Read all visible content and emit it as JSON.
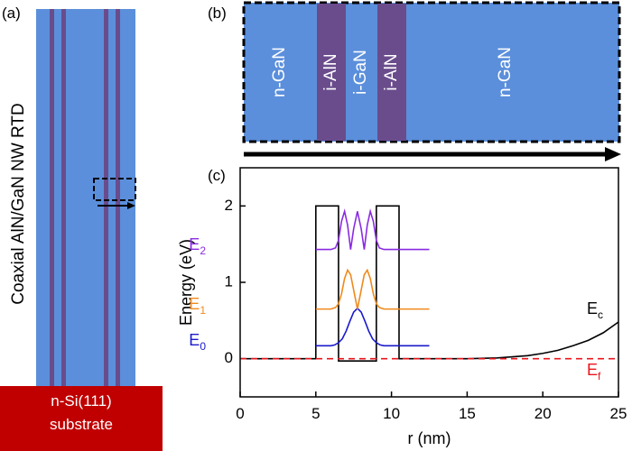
{
  "panel_a": {
    "label": "(a)",
    "device": "Coaxial AlN/GaN NW RTD",
    "substrate": [
      "n-Si(111)",
      "substrate"
    ]
  },
  "panel_b": {
    "label": "(b)",
    "layers": [
      "n-GaN",
      "i-AlN",
      "i-GaN",
      "i-AlN",
      "n-GaN"
    ]
  },
  "chart_data": {
    "type": "line",
    "panel_label": "(c)",
    "x_label": "r (nm)",
    "y_label": "Energy (eV)",
    "xlim": [
      0,
      25
    ],
    "xticks": [
      0,
      5,
      10,
      15,
      20,
      25
    ],
    "ylim": [
      -0.5,
      2.5
    ],
    "yticks": [
      0,
      1,
      2
    ],
    "series": [
      {
        "label": {
          "text": "E",
          "sub": "c"
        },
        "color": "#000000",
        "dashed": false,
        "x": [
          0,
          5,
          5,
          6.5,
          6.5,
          9,
          9,
          10.5,
          10.5,
          15,
          17,
          19,
          20,
          21,
          22,
          23,
          24,
          25
        ],
        "values": [
          0,
          0,
          2,
          2,
          -0.03,
          -0.03,
          2,
          2,
          0,
          0,
          0.01,
          0.04,
          0.07,
          0.11,
          0.17,
          0.24,
          0.34,
          0.48
        ]
      },
      {
        "label": {
          "text": "E",
          "sub": "f"
        },
        "color": "#e8141c",
        "dashed": true,
        "x": [
          0,
          25
        ],
        "values": [
          0,
          0
        ]
      },
      {
        "label": {
          "text": "E",
          "sub": "0"
        },
        "color": "#1a1acc",
        "dashed": false,
        "x": [
          5,
          6,
          6.25,
          6.5,
          6.75,
          7,
          7.25,
          7.5,
          7.75,
          8,
          8.25,
          8.5,
          8.75,
          9,
          9.25,
          9.5,
          12.5
        ],
        "values": [
          0.17,
          0.17,
          0.18,
          0.21,
          0.26,
          0.36,
          0.49,
          0.61,
          0.66,
          0.61,
          0.49,
          0.36,
          0.26,
          0.21,
          0.18,
          0.17,
          0.17
        ]
      },
      {
        "label": {
          "text": "E",
          "sub": "1"
        },
        "color": "#f08a1c",
        "dashed": false,
        "x": [
          5,
          6,
          6.3,
          6.5,
          6.7,
          6.9,
          7.1,
          7.3,
          7.5,
          7.75,
          8,
          8.2,
          8.4,
          8.6,
          8.8,
          9,
          9.2,
          9.5,
          12.5
        ],
        "values": [
          0.65,
          0.65,
          0.67,
          0.72,
          0.85,
          1.05,
          1.16,
          1.1,
          0.9,
          0.65,
          0.9,
          1.1,
          1.16,
          1.05,
          0.85,
          0.72,
          0.67,
          0.65,
          0.65
        ]
      },
      {
        "label": {
          "text": "E",
          "sub": "2"
        },
        "color": "#8a2be2",
        "dashed": false,
        "x": [
          5,
          6,
          6.3,
          6.5,
          6.7,
          6.9,
          7.1,
          7.3,
          7.5,
          7.75,
          8,
          8.2,
          8.4,
          8.6,
          8.8,
          9,
          9.2,
          9.5,
          12.5
        ],
        "values": [
          1.43,
          1.43,
          1.45,
          1.55,
          1.8,
          1.93,
          1.75,
          1.43,
          1.7,
          1.93,
          1.7,
          1.43,
          1.75,
          1.93,
          1.8,
          1.55,
          1.45,
          1.43,
          1.43
        ]
      }
    ]
  }
}
